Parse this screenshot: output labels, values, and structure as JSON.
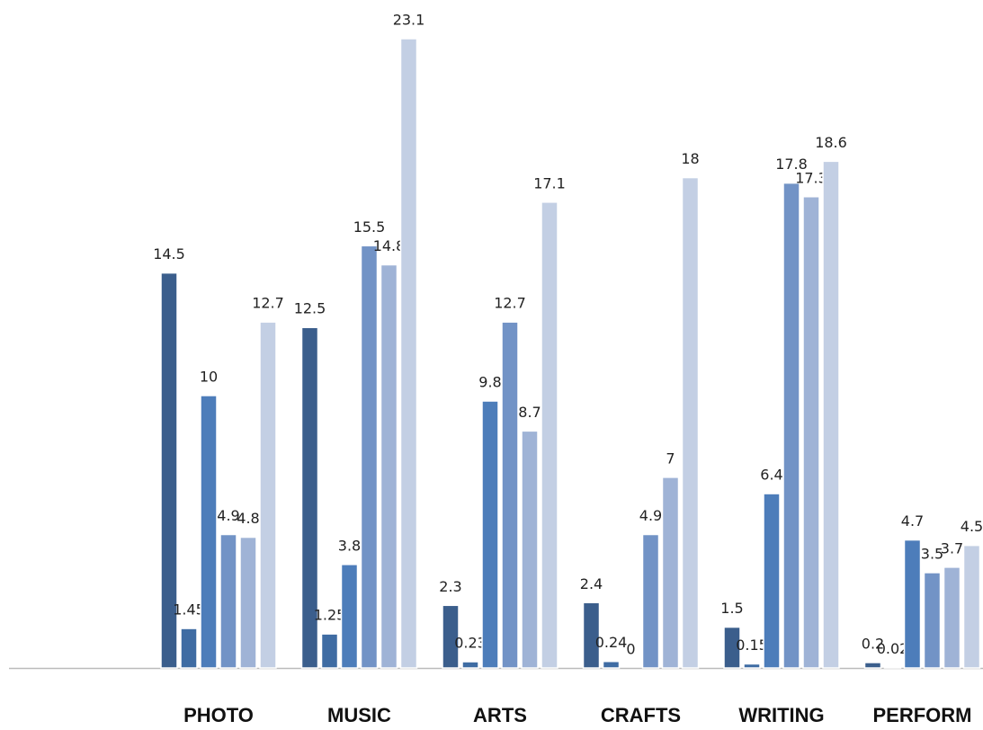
{
  "chart_data": {
    "type": "bar",
    "categories": [
      "PHOTO",
      "MUSIC",
      "ARTS",
      "CRAFTS",
      "WRITING",
      "PERFORM"
    ],
    "series": [
      {
        "color": "#3b5e8c",
        "values": [
          14.5,
          12.5,
          2.3,
          2.4,
          1.5,
          0.2
        ]
      },
      {
        "color": "#3f6ca3",
        "values": [
          1.45,
          1.25,
          0.23,
          0.24,
          0.15,
          0.02
        ]
      },
      {
        "color": "#4d7dba",
        "values": [
          10,
          3.8,
          9.8,
          0,
          6.4,
          4.7
        ]
      },
      {
        "color": "#7293c6",
        "values": [
          4.9,
          15.5,
          12.7,
          4.9,
          17.8,
          3.5
        ]
      },
      {
        "color": "#9fb3d6",
        "values": [
          4.8,
          14.8,
          8.7,
          7,
          17.3,
          3.7
        ]
      },
      {
        "color": "#c3cfe4",
        "values": [
          12.7,
          23.1,
          17.1,
          18,
          18.6,
          4.5
        ]
      }
    ]
  }
}
